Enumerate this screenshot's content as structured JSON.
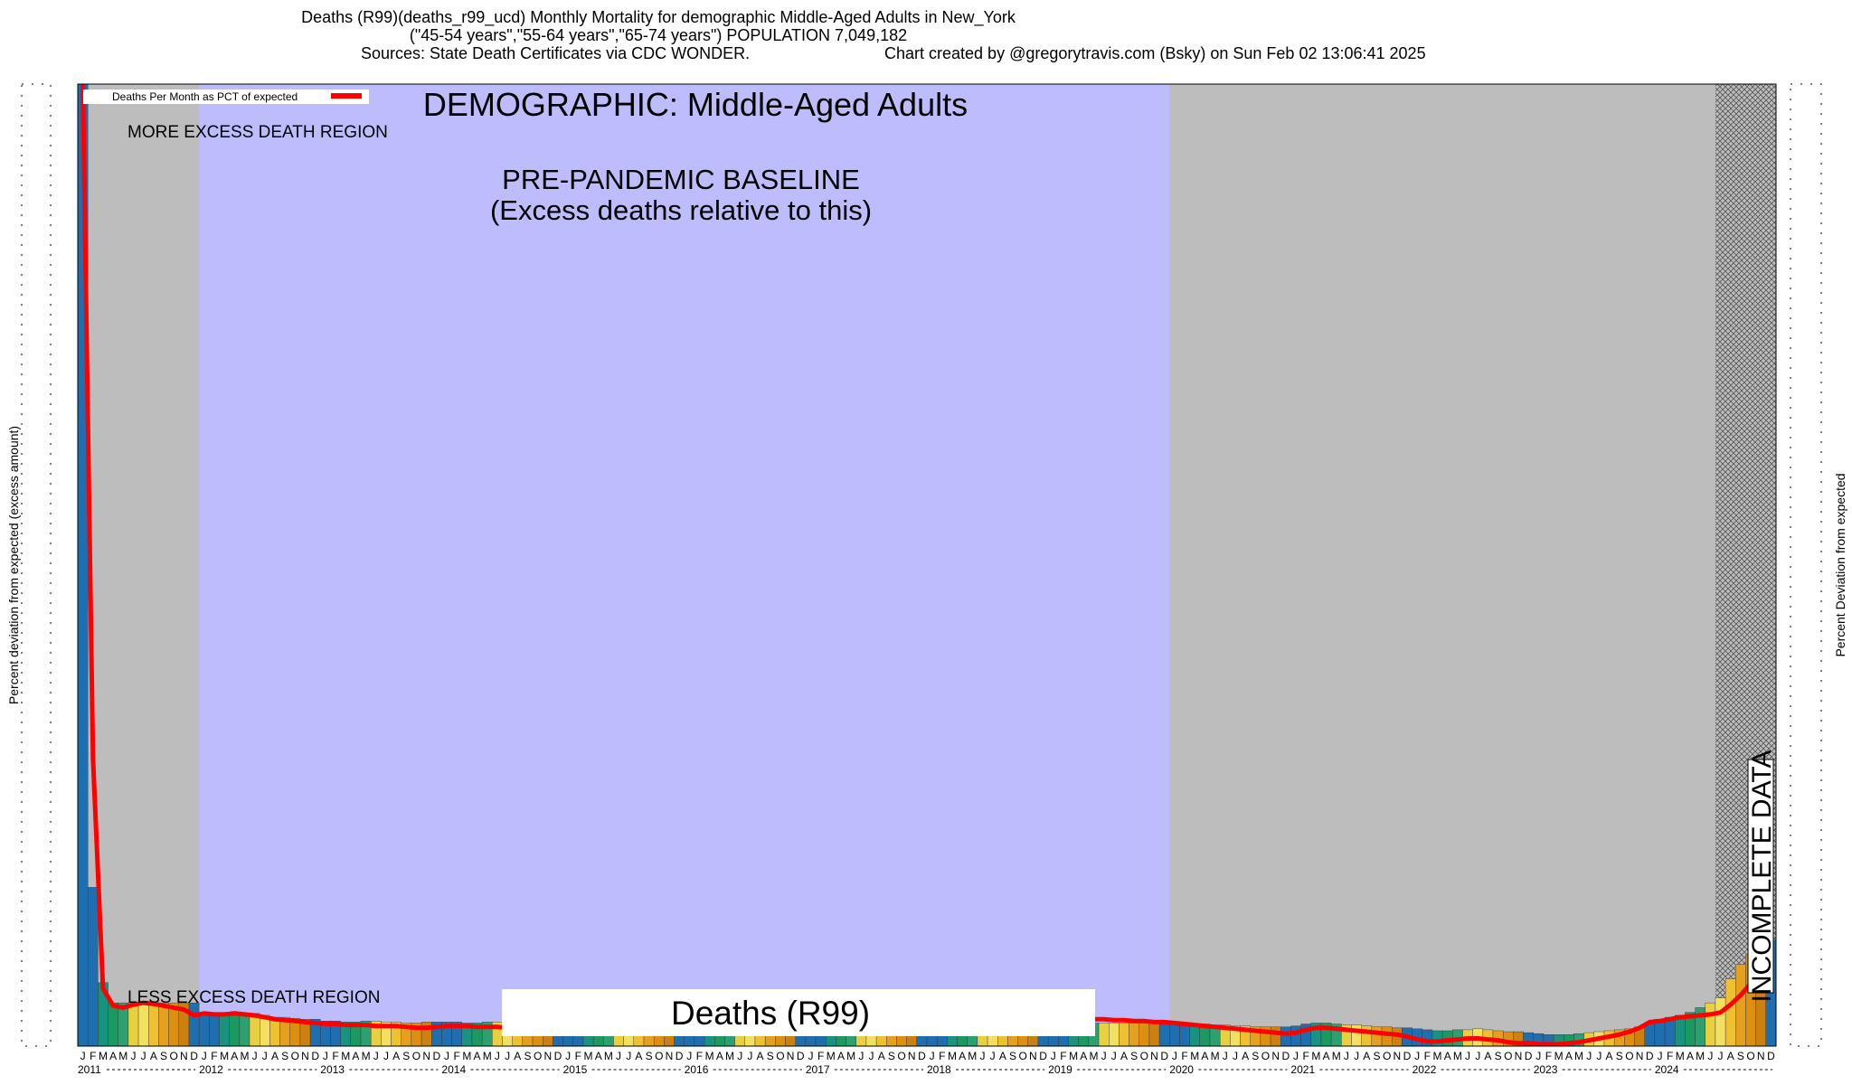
{
  "chart_data": {
    "type": "bar",
    "title": "Deaths (R99)(deaths_r99_ucd) Monthly Mortality for demographic Middle-Aged Adults in New_York",
    "subtitle": "(\"45-54 years\",\"55-64 years\",\"65-74 years\") POPULATION 7,049,182",
    "sources": "Sources: State Death Certificates via CDC WONDER.",
    "credit": "Chart created by @gregorytravis.com (Bsky) on Sun Feb 02 13:06:41 2025",
    "heading": "DEMOGRAPHIC: Middle-Aged Adults",
    "more_region": "MORE EXCESS DEATH REGION",
    "less_region": "LESS EXCESS DEATH REGION",
    "baseline_title": "PRE-PANDEMIC BASELINE",
    "baseline_note": "(Excess deaths relative to this)",
    "cause_label": "Deaths (R99)",
    "incomplete_label": "INCOMPLETE DATA",
    "y_label": "Percent deviation from expected (excess amount)",
    "y2_label": "Percent Deviation from expected",
    "month_labels": [
      "J",
      "F",
      "M",
      "A",
      "M",
      "J",
      "J",
      "A",
      "S",
      "O",
      "N",
      "D"
    ],
    "years": [
      "2011",
      "2012",
      "2013",
      "2014",
      "2015",
      "2016",
      "2017",
      "2018",
      "2019",
      "2020",
      "2021",
      "2022",
      "2023",
      "2024"
    ],
    "month_colors": [
      "#1f6fb0",
      "#1f6fb0",
      "#17937f",
      "#1a9a60",
      "#2ca070",
      "#e8d040",
      "#f3e060",
      "#efc030",
      "#e6a020",
      "#dd9010",
      "#cc8010",
      "#1f6fb0"
    ],
    "ylim": [
      0,
      100
    ],
    "values": [
      100,
      16.5,
      6.6,
      4.5,
      4.5,
      4.5,
      4.5,
      4.5,
      4.5,
      4.5,
      4.5,
      4.5,
      3.5,
      3.3,
      3.3,
      3.5,
      3.4,
      3.4,
      3.2,
      3.0,
      3.0,
      2.9,
      2.8,
      2.8,
      2.6,
      2.6,
      2.5,
      2.5,
      2.6,
      2.6,
      2.5,
      2.5,
      2.4,
      2.4,
      2.5,
      2.5,
      2.5,
      2.5,
      2.4,
      2.4,
      2.5,
      2.5,
      2.4,
      2.4,
      2.4,
      2.4,
      2.5,
      2.5,
      2.5,
      2.5,
      2.4,
      2.4,
      2.4,
      2.4,
      2.4,
      2.4,
      2.4,
      2.4,
      2.5,
      2.5,
      2.5,
      2.5,
      2.4,
      2.4,
      2.4,
      2.4,
      2.4,
      2.4,
      2.4,
      2.4,
      2.5,
      2.5,
      2.5,
      2.5,
      2.4,
      2.4,
      2.4,
      2.4,
      2.4,
      2.4,
      2.4,
      2.4,
      2.5,
      2.5,
      2.5,
      2.5,
      2.4,
      2.4,
      2.4,
      2.4,
      2.4,
      2.4,
      2.4,
      2.4,
      2.5,
      2.5,
      2.5,
      2.5,
      2.4,
      2.4,
      2.4,
      2.4,
      2.4,
      2.4,
      2.4,
      2.4,
      2.5,
      2.5,
      2.5,
      2.4,
      2.3,
      2.3,
      2.2,
      2.2,
      2.1,
      2.1,
      2.0,
      2.0,
      2.0,
      2.0,
      2.1,
      2.3,
      2.4,
      2.4,
      2.3,
      2.2,
      2.2,
      2.1,
      2.0,
      2.0,
      1.9,
      1.9,
      1.8,
      1.7,
      1.6,
      1.6,
      1.7,
      1.7,
      1.8,
      1.7,
      1.6,
      1.5,
      1.5,
      1.4,
      1.3,
      1.2,
      1.2,
      1.2,
      1.3,
      1.4,
      1.5,
      1.6,
      1.7,
      1.8,
      2.0,
      2.3,
      2.8,
      3.0,
      3.2,
      3.5,
      4.0,
      4.5,
      5.0,
      7.0,
      8.5,
      9.5,
      8.0,
      11.0
    ],
    "line": {
      "name": "Deaths Per Month as PCT of expected",
      "color": "#ff0000",
      "values": [
        100,
        30,
        6,
        4.2,
        4.0,
        4.3,
        4.5,
        4.4,
        4.2,
        4.0,
        3.8,
        3.2,
        3.4,
        3.3,
        3.3,
        3.4,
        3.3,
        3.2,
        3.0,
        2.8,
        2.7,
        2.6,
        2.5,
        2.4,
        2.3,
        2.3,
        2.2,
        2.2,
        2.2,
        2.1,
        2.1,
        2.1,
        2.0,
        1.9,
        1.9,
        2.0,
        2.1,
        2.1,
        2.1,
        2.0,
        2.0,
        2.0,
        1.9,
        1.9,
        1.9,
        1.9,
        1.9,
        1.9,
        2.0,
        2.0,
        2.0,
        2.0,
        2.0,
        2.0,
        2.0,
        2.0,
        2.0,
        2.0,
        2.0,
        2.0,
        2.1,
        2.1,
        2.1,
        2.1,
        2.1,
        2.1,
        2.1,
        2.1,
        2.1,
        2.1,
        2.1,
        2.1,
        2.2,
        2.2,
        2.2,
        2.2,
        2.2,
        2.2,
        2.2,
        2.3,
        2.3,
        2.3,
        2.3,
        2.3,
        2.4,
        2.4,
        2.4,
        2.5,
        2.5,
        2.5,
        2.6,
        2.6,
        2.7,
        2.8,
        2.9,
        3.0,
        3.0,
        3.0,
        2.9,
        2.9,
        2.8,
        2.8,
        2.7,
        2.7,
        2.6,
        2.6,
        2.5,
        2.5,
        2.4,
        2.3,
        2.2,
        2.1,
        2.0,
        1.9,
        1.8,
        1.7,
        1.6,
        1.5,
        1.4,
        1.3,
        1.4,
        1.7,
        1.9,
        1.9,
        1.8,
        1.7,
        1.6,
        1.5,
        1.4,
        1.3,
        1.2,
        1.0,
        0.7,
        0.5,
        0.5,
        0.6,
        0.7,
        0.8,
        0.8,
        0.7,
        0.6,
        0.4,
        0.3,
        0.3,
        0.2,
        0.2,
        0.2,
        0.3,
        0.4,
        0.6,
        0.8,
        1.0,
        1.2,
        1.5,
        1.9,
        2.5,
        2.6,
        2.8,
        3.0,
        3.1,
        3.2,
        3.3,
        3.5,
        4.3,
        5.3,
        6.5,
        7.8,
        8.8
      ]
    }
  }
}
